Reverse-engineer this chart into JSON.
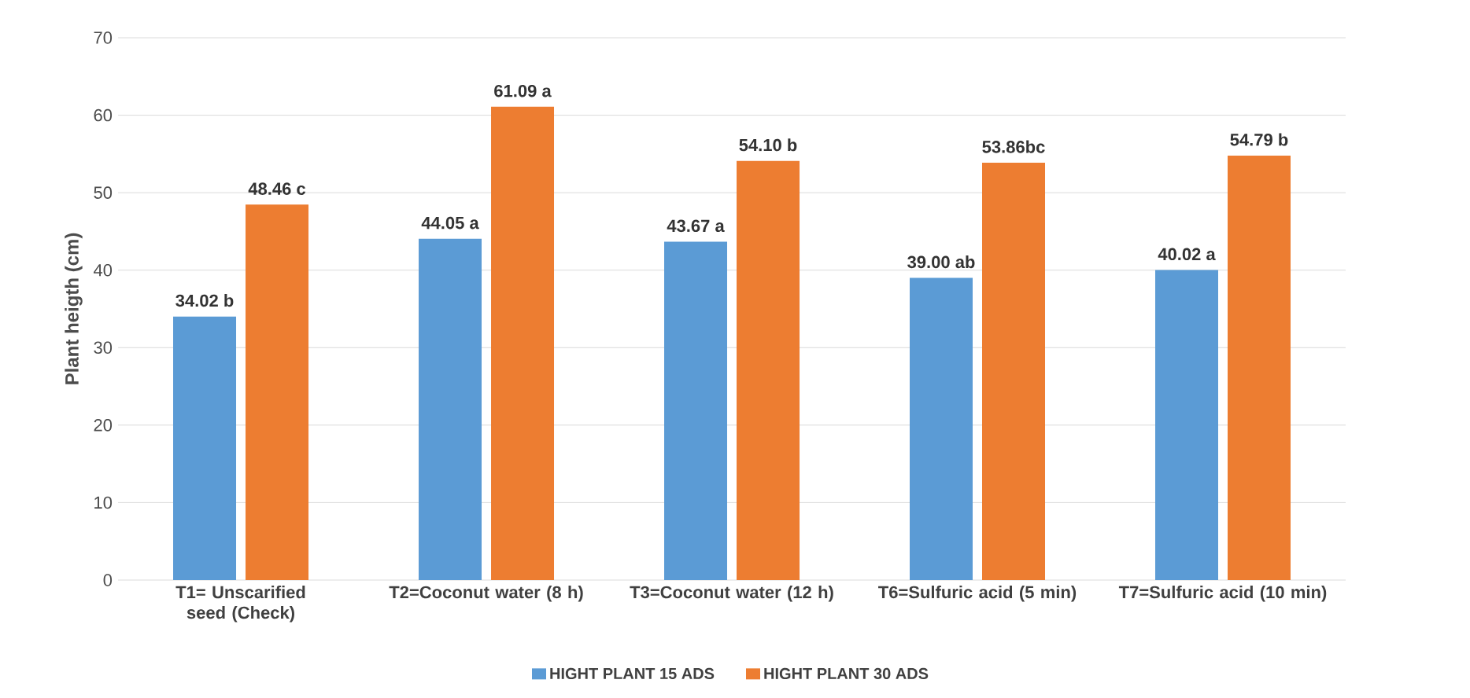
{
  "chart_data": {
    "type": "bar",
    "ylabel": "Plant heigth (cm)",
    "categories": [
      "T1= Unscarified seed (Check)",
      "T2=Coconut water (8 h)",
      "T3=Coconut water (12 h)",
      "T6=Sulfuric acid (5 min)",
      "T7=Sulfuric acid (10 min)"
    ],
    "series": [
      {
        "name": "HIGHT PLANT 15 ADS",
        "color": "#5b9bd5",
        "values": [
          34.02,
          44.05,
          43.67,
          39.0,
          40.02
        ],
        "value_labels": [
          "34.02 b",
          "44.05 a",
          "43.67 a",
          "39.00 ab",
          "40.02 a"
        ]
      },
      {
        "name": "HIGHT PLANT 30 ADS",
        "color": "#ed7d31",
        "values": [
          48.46,
          61.09,
          54.1,
          53.86,
          54.79
        ],
        "value_labels": [
          "48.46 c",
          "61.09 a",
          "54.10 b",
          "53.86bc",
          "54.79 b"
        ]
      }
    ],
    "ylim": [
      0,
      70
    ],
    "yticks": [
      0,
      10,
      20,
      30,
      40,
      50,
      60,
      70
    ],
    "grid": "y",
    "legend": "bottom"
  }
}
